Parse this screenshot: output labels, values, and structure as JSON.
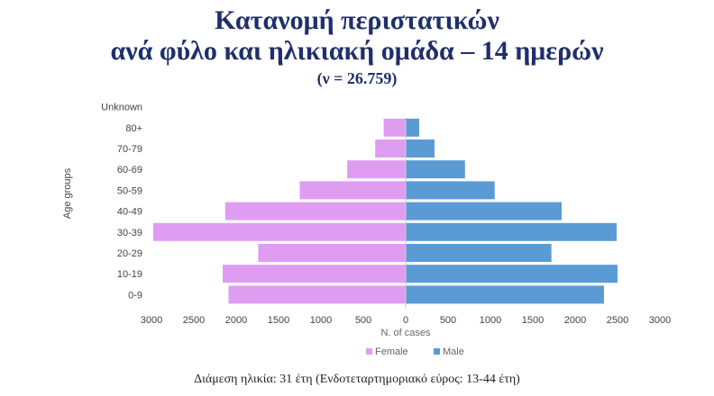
{
  "header": {
    "title_line1": "Κατανομή περιστατικών",
    "title_line2": "ανά φύλο και ηλικιακή ομάδα – 14 ημερών",
    "subtitle": "(ν = 26.759)"
  },
  "footnote": "Διάμεση ηλικία: 31 έτη (Ενδοτεταρτημοριακό εύρος: 13-44 έτη)",
  "colors": {
    "female": "#df9df2",
    "male": "#5b9bd5"
  },
  "chart_data": {
    "type": "bar",
    "orientation": "horizontal-population-pyramid",
    "categories": [
      "0-9",
      "10-19",
      "20-29",
      "30-39",
      "40-49",
      "50-59",
      "60-69",
      "70-79",
      "80+",
      "Unknown"
    ],
    "series": [
      {
        "name": "Female",
        "values": [
          2090,
          2160,
          1740,
          2980,
          2130,
          1250,
          690,
          360,
          260,
          0
        ]
      },
      {
        "name": "Male",
        "values": [
          2340,
          2500,
          1720,
          2490,
          1840,
          1050,
          700,
          340,
          160,
          0
        ]
      }
    ],
    "xlabel": "N. of cases",
    "ylabel": "Age groups",
    "xlim": [
      -3000,
      3000
    ],
    "x_tick_labels": [
      "3000",
      "2500",
      "2000",
      "1500",
      "1000",
      "500",
      "0",
      "500",
      "1000",
      "1500",
      "2000",
      "2500",
      "3000"
    ],
    "grid": false,
    "legend": "bottom"
  }
}
